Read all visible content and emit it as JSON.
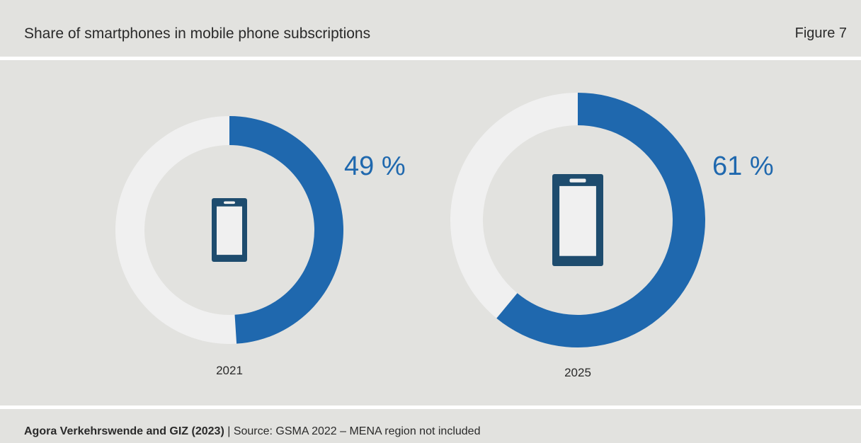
{
  "header": {
    "title": "Share of smartphones in mobile phone subscriptions",
    "figure_label": "Figure 7"
  },
  "footer": {
    "credit": "Agora Verkehrswende and GIZ (2023)",
    "separator": " | ",
    "source": "Source: GSMA 2022 – MENA region not included"
  },
  "colors": {
    "filled": "#1f68ae",
    "remainder": "#f0f0f0",
    "icon": "#1e4c6e",
    "background": "#e2e2df",
    "label": "#1f68ae"
  },
  "icons": [
    "smartphone-icon"
  ],
  "chart_data": {
    "type": "pie",
    "variant": "donut",
    "categories": [
      "2021",
      "2025"
    ],
    "values": [
      49,
      61
    ],
    "unit": "%",
    "value_labels": [
      "49 %",
      "61 %"
    ]
  }
}
